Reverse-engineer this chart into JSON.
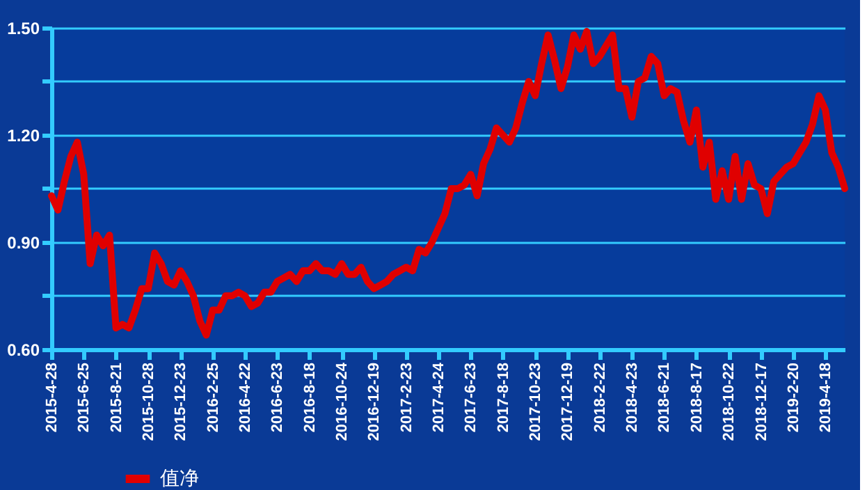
{
  "chart_data": {
    "type": "line",
    "categories": [
      "2015-4-28",
      null,
      null,
      null,
      null,
      "2015-6-25",
      null,
      null,
      null,
      null,
      "2015-8-21",
      null,
      null,
      null,
      null,
      "2015-10-28",
      null,
      null,
      null,
      null,
      "2015-12-23",
      null,
      null,
      null,
      null,
      "2016-2-25",
      null,
      null,
      null,
      null,
      "2016-4-22",
      null,
      null,
      null,
      null,
      "2016-6-23",
      null,
      null,
      null,
      null,
      "2016-8-18",
      null,
      null,
      null,
      null,
      "2016-10-24",
      null,
      null,
      null,
      null,
      "2016-12-19",
      null,
      null,
      null,
      null,
      "2017-2-23",
      null,
      null,
      null,
      null,
      "2017-4-24",
      null,
      null,
      null,
      null,
      "2017-6-23",
      null,
      null,
      null,
      null,
      "2017-8-18",
      null,
      null,
      null,
      null,
      "2017-10-23",
      null,
      null,
      null,
      null,
      "2017-12-19",
      null,
      null,
      null,
      null,
      "2018-2-22",
      null,
      null,
      null,
      null,
      "2018-4-23",
      null,
      null,
      null,
      null,
      "2018-6-21",
      null,
      null,
      null,
      null,
      "2018-8-17",
      null,
      null,
      null,
      null,
      "2018-10-22",
      null,
      null,
      null,
      null,
      "2018-12-17",
      null,
      null,
      null,
      null,
      "2019-2-20",
      null,
      null,
      null,
      null,
      "2019-4-18",
      null,
      null,
      null
    ],
    "series": [
      {
        "name": "值净",
        "color": "#e00000",
        "values": [
          1.03,
          0.99,
          1.07,
          1.14,
          1.18,
          1.09,
          0.84,
          0.92,
          0.89,
          0.92,
          0.66,
          0.67,
          0.66,
          0.71,
          0.77,
          0.77,
          0.87,
          0.84,
          0.79,
          0.78,
          0.82,
          0.79,
          0.75,
          0.68,
          0.64,
          0.71,
          0.71,
          0.75,
          0.75,
          0.76,
          0.75,
          0.72,
          0.73,
          0.76,
          0.76,
          0.79,
          0.8,
          0.81,
          0.79,
          0.82,
          0.82,
          0.84,
          0.82,
          0.82,
          0.81,
          0.84,
          0.81,
          0.81,
          0.83,
          0.79,
          0.77,
          0.78,
          0.79,
          0.81,
          0.82,
          0.83,
          0.82,
          0.88,
          0.87,
          0.9,
          0.94,
          0.98,
          1.05,
          1.05,
          1.06,
          1.09,
          1.03,
          1.12,
          1.16,
          1.22,
          1.2,
          1.18,
          1.22,
          1.29,
          1.35,
          1.31,
          1.4,
          1.48,
          1.41,
          1.33,
          1.39,
          1.48,
          1.44,
          1.49,
          1.4,
          1.42,
          1.45,
          1.48,
          1.33,
          1.33,
          1.25,
          1.35,
          1.36,
          1.42,
          1.4,
          1.31,
          1.33,
          1.32,
          1.24,
          1.18,
          1.27,
          1.11,
          1.18,
          1.02,
          1.1,
          1.02,
          1.14,
          1.02,
          1.12,
          1.06,
          1.05,
          0.98,
          1.07,
          1.09,
          1.11,
          1.12,
          1.15,
          1.18,
          1.23,
          1.31,
          1.27,
          1.15,
          1.11,
          1.05
        ]
      }
    ],
    "ylim": [
      0.6,
      1.5
    ],
    "yticks": [
      {
        "value": 0.6,
        "label": "0.60"
      },
      {
        "value": 0.75,
        "label": null
      },
      {
        "value": 0.9,
        "label": "0.90"
      },
      {
        "value": 1.05,
        "label": null
      },
      {
        "value": 1.2,
        "label": "1.20"
      },
      {
        "value": 1.35,
        "label": null
      },
      {
        "value": 1.5,
        "label": "1.50"
      }
    ],
    "grid": "y",
    "legend": "bottom left",
    "line_style": "solid",
    "marker": "none"
  }
}
